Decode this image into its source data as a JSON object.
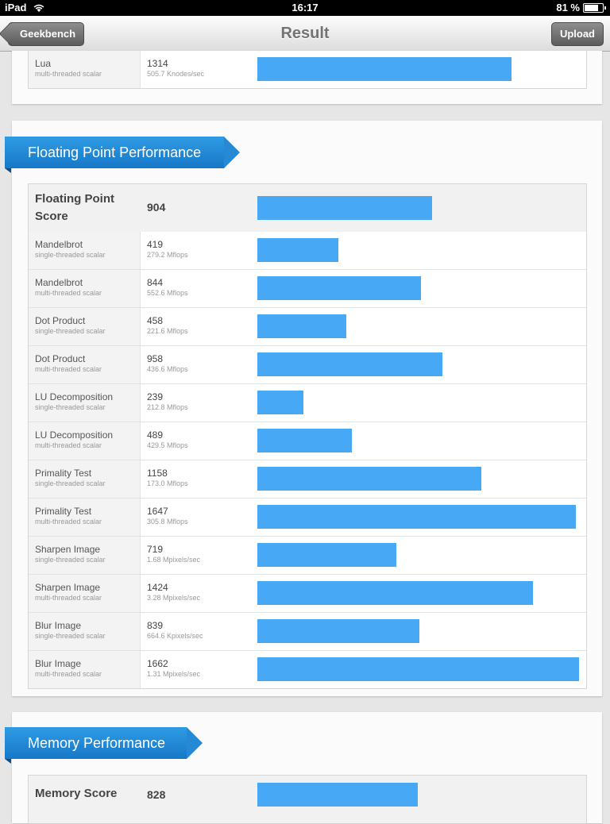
{
  "status_bar": {
    "device": "iPad",
    "time": "16:17",
    "battery": "81 %"
  },
  "nav": {
    "back_label": "Geekbench",
    "title": "Result",
    "upload_label": "Upload"
  },
  "colors": {
    "bar": "#47a9f5",
    "ribbon": "#1e86d8"
  },
  "top_card": {
    "rows": [
      {
        "name": "Lua",
        "sub": "multi-threaded scalar",
        "score": "1314",
        "rate": "505.7 Knodes/sec",
        "bar": 1314
      }
    ]
  },
  "floating_point": {
    "title": "Floating Point Performance",
    "summary": {
      "label": "Floating Point Score",
      "score": "904",
      "bar": 904
    },
    "rows": [
      {
        "name": "Mandelbrot",
        "sub": "single-threaded scalar",
        "score": "419",
        "rate": "279.2 Mflops",
        "bar": 419
      },
      {
        "name": "Mandelbrot",
        "sub": "multi-threaded scalar",
        "score": "844",
        "rate": "552.6 Mflops",
        "bar": 844
      },
      {
        "name": "Dot Product",
        "sub": "single-threaded scalar",
        "score": "458",
        "rate": "221.6 Mflops",
        "bar": 458
      },
      {
        "name": "Dot Product",
        "sub": "multi-threaded scalar",
        "score": "958",
        "rate": "436.6 Mflops",
        "bar": 958
      },
      {
        "name": "LU Decomposition",
        "sub": "single-threaded scalar",
        "score": "239",
        "rate": "212.8 Mflops",
        "bar": 239
      },
      {
        "name": "LU Decomposition",
        "sub": "multi-threaded scalar",
        "score": "489",
        "rate": "429.5 Mflops",
        "bar": 489
      },
      {
        "name": "Primality Test",
        "sub": "single-threaded scalar",
        "score": "1158",
        "rate": "173.0 Mflops",
        "bar": 1158
      },
      {
        "name": "Primality Test",
        "sub": "multi-threaded scalar",
        "score": "1647",
        "rate": "305.8 Mflops",
        "bar": 1647
      },
      {
        "name": "Sharpen Image",
        "sub": "single-threaded scalar",
        "score": "719",
        "rate": "1.68 Mpixels/sec",
        "bar": 719
      },
      {
        "name": "Sharpen Image",
        "sub": "multi-threaded scalar",
        "score": "1424",
        "rate": "3.28 Mpixels/sec",
        "bar": 1424
      },
      {
        "name": "Blur Image",
        "sub": "single-threaded scalar",
        "score": "839",
        "rate": "664.6 Kpixels/sec",
        "bar": 839
      },
      {
        "name": "Blur Image",
        "sub": "multi-threaded scalar",
        "score": "1662",
        "rate": "1.31 Mpixels/sec",
        "bar": 1662
      }
    ]
  },
  "memory": {
    "title": "Memory Performance",
    "summary": {
      "label": "Memory Score",
      "score": "828",
      "bar": 828
    }
  }
}
